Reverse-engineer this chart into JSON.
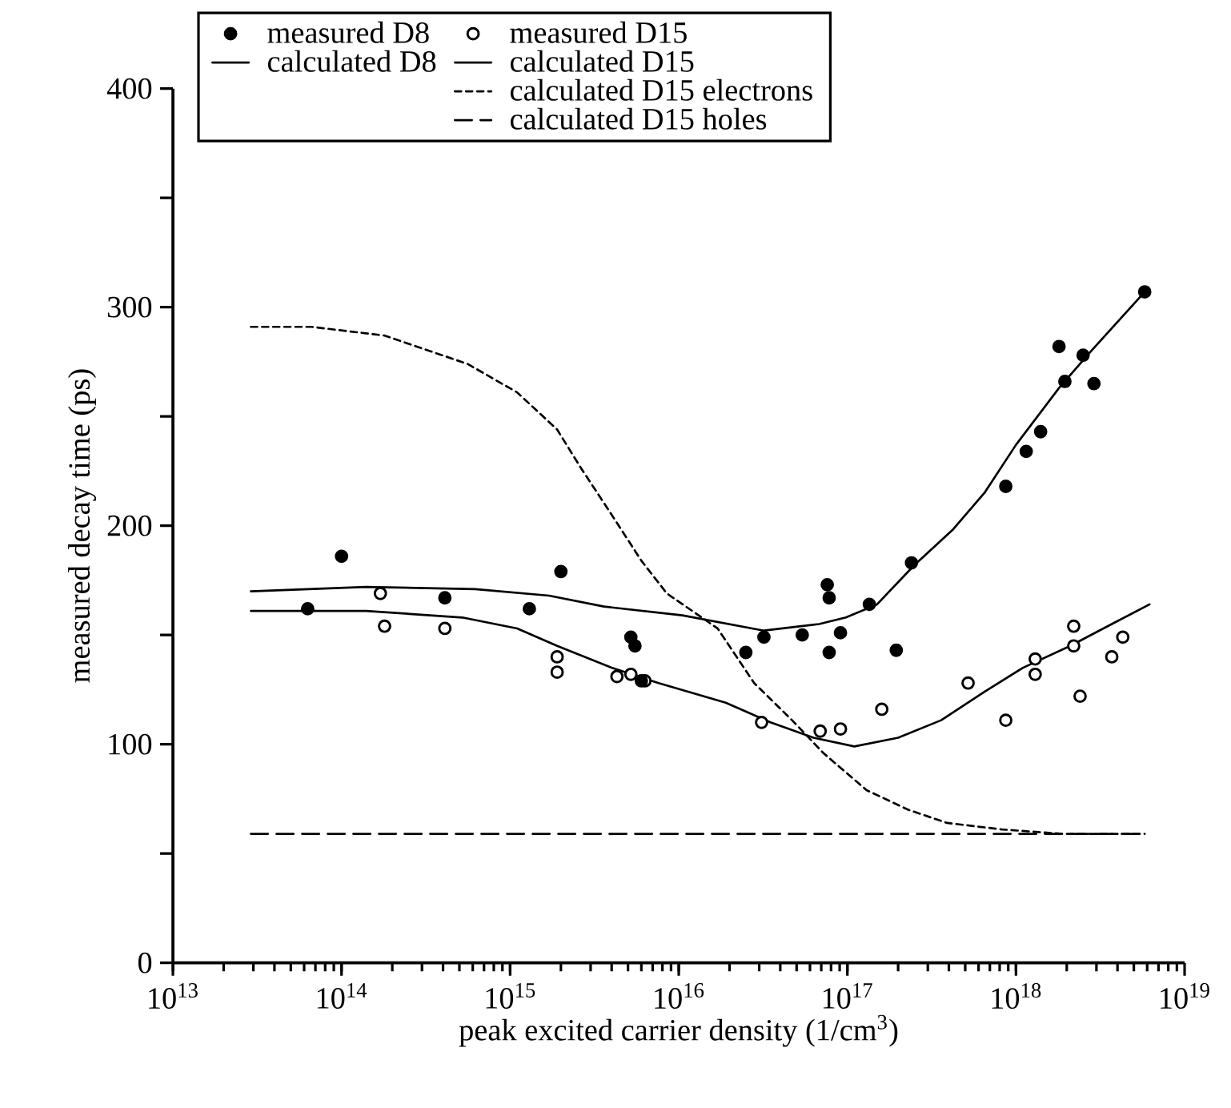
{
  "chart_data": {
    "type": "line",
    "xlabel": "peak excited carrier density (1/cm$^{3}$)",
    "ylabel": "measured decay time (ps)",
    "log": "x",
    "xlim": [
      10000000000000.0,
      1e+19
    ],
    "ylim": [
      0,
      400
    ],
    "xticks": [
      {
        "value": 10000000000000.0,
        "label": "10$^{13}$"
      },
      {
        "value": 100000000000000.0,
        "label": "10$^{14}$"
      },
      {
        "value": 1000000000000000.0,
        "label": "10$^{15}$"
      },
      {
        "value": 1e+16,
        "label": "10$^{16}$"
      },
      {
        "value": 1e+17,
        "label": "10$^{17}$"
      },
      {
        "value": 1e+18,
        "label": "10$^{18}$"
      },
      {
        "value": 1e+19,
        "label": "10$^{19}$"
      }
    ],
    "yticks": [
      0,
      {
        "value": 50,
        "label": null
      },
      100,
      {
        "value": 150,
        "label": null
      },
      200,
      {
        "value": 250,
        "label": null
      },
      300,
      {
        "value": 350,
        "label": null
      },
      400
    ],
    "grid": false,
    "legend": "top",
    "series": [
      {
        "name": "measured D8",
        "type": "scatter",
        "marker": "circle",
        "color": "#000000",
        "x": [
          63000000000000.0,
          100000000000000.0,
          410000000000000.0,
          1300000000000000.0,
          2000000000000000.0,
          5200000000000000.0,
          5500000000000000.0,
          6000000000000000.0,
          2.5e+16,
          3.2e+16,
          5.4e+16,
          7.6e+16,
          7.8e+16,
          7.8e+16,
          9.1e+16,
          1.35e+17,
          1.95e+17,
          2.4e+17,
          8.7e+17,
          1.15e+18,
          1.4e+18,
          1.8e+18,
          1.95e+18,
          2.5e+18,
          2.9e+18,
          5.8e+18
        ],
        "values": [
          162,
          186,
          167,
          162,
          179,
          149,
          145,
          129,
          142,
          149,
          150,
          173,
          167,
          142,
          151,
          164,
          143,
          183,
          218,
          234,
          243,
          282,
          266,
          278,
          265,
          307
        ]
      },
      {
        "name": "calculated D8",
        "type": "line",
        "line_style": "solid",
        "color": "#000000",
        "x": [
          29000000000000.0,
          140000000000000.0,
          620000000000000.0,
          1700000000000000.0,
          3600000000000000.0,
          1.05e+16,
          3.2e+16,
          6.8e+16,
          9.8e+16,
          1.5e+17,
          2.5e+17,
          4.2e+17,
          6.5e+17,
          1e+18,
          1.8e+18,
          2.8e+18,
          5.8e+18
        ],
        "values": [
          170,
          172,
          171,
          168,
          163,
          159,
          152,
          155,
          158,
          164,
          182,
          198,
          215,
          237,
          263,
          280,
          307
        ]
      },
      {
        "name": "measured D15",
        "type": "scatter",
        "marker": "open circle",
        "color": "#000000",
        "x": [
          170000000000000.0,
          180000000000000.0,
          410000000000000.0,
          1900000000000000.0,
          1900000000000000.0,
          4300000000000000.0,
          5200000000000000.0,
          6300000000000000.0,
          3.1e+16,
          6.9e+16,
          9.1e+16,
          1.6e+17,
          5.2e+17,
          8.7e+17,
          1.3e+18,
          1.3e+18,
          2.2e+18,
          2.2e+18,
          2.4e+18,
          3.7e+18,
          4.3e+18
        ],
        "values": [
          169,
          154,
          153,
          140,
          133,
          131,
          132,
          129,
          110,
          106,
          107,
          116,
          128,
          111,
          139,
          132,
          154,
          145,
          122,
          140,
          149
        ]
      },
      {
        "name": "calculated D15",
        "type": "line",
        "line_style": "solid",
        "color": "#000000",
        "x": [
          29000000000000.0,
          140000000000000.0,
          520000000000000.0,
          1100000000000000.0,
          1900000000000000.0,
          4000000000000000.0,
          7600000000000000.0,
          1.9e+16,
          3.5e+16,
          6.3e+16,
          1.1e+17,
          2e+17,
          3.6e+17,
          6.5e+17,
          1.1e+18,
          2.1e+18,
          3.7e+18,
          6.2e+18
        ],
        "values": [
          161,
          161,
          158,
          153,
          145,
          135,
          128,
          119,
          110,
          103,
          99,
          103,
          111,
          124,
          135,
          145,
          155,
          164
        ]
      },
      {
        "name": "calculated D15 electrons",
        "type": "line",
        "line_style": "dotted",
        "color": "#000000",
        "x": [
          29000000000000.0,
          66000000000000.0,
          180000000000000.0,
          560000000000000.0,
          1100000000000000.0,
          1900000000000000.0,
          2600000000000000.0,
          4000000000000000.0,
          6000000000000000.0,
          8500000000000000.0,
          1.7e+16,
          2.8e+16,
          4.7e+16,
          7.2e+16,
          1.3e+17,
          2.3e+17,
          3.9e+17,
          8.3e+17,
          1.9e+18,
          5.8e+18
        ],
        "values": [
          291,
          291,
          287,
          274,
          261,
          244,
          227,
          205,
          184,
          169,
          153,
          128,
          111,
          96,
          79,
          70,
          64,
          61,
          59,
          59
        ]
      },
      {
        "name": "calculated D15 holes",
        "type": "line",
        "line_style": "dashed",
        "color": "#000000",
        "x": [
          29000000000000.0,
          5.8e+18
        ],
        "values": [
          59,
          59
        ]
      }
    ]
  }
}
